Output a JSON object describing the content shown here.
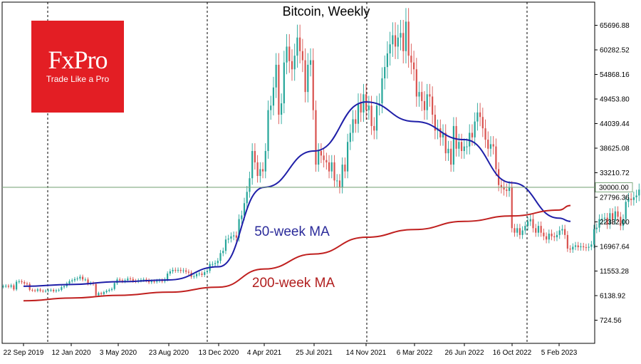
{
  "logo": {
    "name": "FxPro",
    "tagline": "Trade Like a Pro",
    "color": "#e31e24"
  },
  "colors": {
    "up": "#26a69a",
    "down": "#d9534f",
    "ma50": "#1f1fa8",
    "ma200": "#c0201f",
    "level": "#7fa87f"
  },
  "chart_data": {
    "type": "line",
    "title": "Bitcoin, Weekly",
    "y_ticks": [
      "65696.88",
      "60282.52",
      "54868.16",
      "49453.80",
      "44039.44",
      "38625.08",
      "33210.72",
      "27796.36",
      "22382.00",
      "16967.64",
      "11553.28",
      "6138.92",
      "724.56"
    ],
    "x_ticks": [
      "22 Sep 2019",
      "12 Jan 2020",
      "3 May 2020",
      "23 Aug 2020",
      "13 Dec 2020",
      "4 Apr 2021",
      "25 Jul 2021",
      "14 Nov 2021",
      "6 Mar 2022",
      "26 Jun 2022",
      "16 Oct 2022",
      "5 Feb 2023"
    ],
    "ylim": [
      -2000,
      70000
    ],
    "level": {
      "value": 30000,
      "label": "30000.00"
    },
    "annotations": [
      {
        "text": "50-week MA",
        "series": "ma50"
      },
      {
        "text": "200-week MA",
        "series": "ma200"
      }
    ],
    "series": [
      {
        "name": "Bitcoin",
        "type": "candlestick",
        "closes": [
          8200,
          8300,
          8100,
          8400,
          7500,
          9200,
          9300,
          9100,
          8800,
          8700,
          7400,
          7300,
          7200,
          7500,
          7200,
          7100,
          7200,
          7300,
          7400,
          7100,
          7300,
          7400,
          8000,
          8200,
          8800,
          9300,
          9500,
          9800,
          9900,
          10300,
          9700,
          9700,
          8800,
          8900,
          8700,
          6200,
          6700,
          6500,
          6900,
          7200,
          7400,
          7600,
          8900,
          9700,
          9500,
          9300,
          9500,
          9900,
          9800,
          9400,
          9300,
          9500,
          9600,
          9700,
          9500,
          9100,
          9300,
          9200,
          9400,
          9500,
          9300,
          9700,
          11000,
          11500,
          11800,
          11700,
          11800,
          11600,
          11700,
          11400,
          11200,
          10300,
          10400,
          10900,
          11000,
          10700,
          11300,
          11600,
          13100,
          13100,
          13300,
          13800,
          15500,
          16000,
          18500,
          18700,
          19200,
          19400,
          18900,
          23000,
          23800,
          26500,
          29000,
          32000,
          38000,
          35500,
          32500,
          34000,
          33500,
          38000,
          47000,
          48000,
          52000,
          57000,
          46000,
          48500,
          57500,
          61000,
          57800,
          56000,
          59000,
          63000,
          60000,
          58000,
          51000,
          57000,
          58000,
          47000,
          35000,
          38000,
          37000,
          36000,
          35500,
          33500,
          35500,
          31500,
          31500,
          30000,
          35000,
          33500,
          40000,
          42000,
          45000,
          44000,
          48500,
          46500,
          50500,
          47000,
          48000,
          43500,
          42500,
          48000,
          48500,
          54000,
          56500,
          59500,
          61500,
          63500,
          61000,
          63000,
          64000,
          60000,
          66500,
          59000,
          57500,
          56000,
          50000,
          51000,
          49000,
          47000,
          50500,
          50000,
          46000,
          42500,
          43000,
          41000,
          42000,
          37500,
          38500,
          35000,
          43500,
          38500,
          40000,
          38000,
          39000,
          39000,
          42000,
          41000,
          44500,
          46500,
          45500,
          43000,
          40500,
          38500,
          39500,
          39000,
          34000,
          30500,
          30000,
          29500,
          29200,
          30000,
          21000,
          20000,
          21000,
          19500,
          20500,
          21500,
          22500,
          23000,
          21000,
          20000,
          21500,
          20000,
          19200,
          18500,
          19800,
          19200,
          19000,
          19500,
          20500,
          20800,
          19500,
          16500,
          16300,
          16900,
          17200,
          16800,
          17000,
          16800,
          16700,
          16900,
          17400,
          20800,
          21100,
          23000,
          23100,
          23300,
          21800,
          24300,
          22800,
          24700,
          23500,
          21500,
          23000,
          26800,
          27500,
          27200,
          27800,
          28200,
          29500,
          30300
        ]
      },
      {
        "name": "50-week MA",
        "color": "#1f1fa8",
        "points": [
          [
            "22 Sep 2019",
            8200
          ],
          [
            "12 Jan 2020",
            8600
          ],
          [
            "3 May 2020",
            9200
          ],
          [
            "23 Aug 2020",
            9600
          ],
          [
            "13 Dec 2020",
            12500
          ],
          [
            "4 Apr 2021",
            30000
          ],
          [
            "25 Jul 2021",
            38000
          ],
          [
            "14 Nov 2021",
            48800
          ],
          [
            "6 Mar 2022",
            44500
          ],
          [
            "26 Jun 2022",
            40500
          ],
          [
            "16 Oct 2022",
            31000
          ],
          [
            "5 Feb 2023",
            23200
          ],
          [
            "19 Mar 2023",
            22500
          ]
        ]
      },
      {
        "name": "200-week MA",
        "color": "#c0201f",
        "points": [
          [
            "22 Sep 2019",
            5000
          ],
          [
            "12 Jan 2020",
            5600
          ],
          [
            "3 May 2020",
            6200
          ],
          [
            "23 Aug 2020",
            6900
          ],
          [
            "13 Dec 2020",
            8000
          ],
          [
            "4 Apr 2021",
            12000
          ],
          [
            "25 Jul 2021",
            15300
          ],
          [
            "14 Nov 2021",
            19000
          ],
          [
            "6 Mar 2022",
            20700
          ],
          [
            "26 Jun 2022",
            22500
          ],
          [
            "16 Oct 2022",
            23700
          ],
          [
            "5 Feb 2023",
            25000
          ],
          [
            "19 Mar 2023",
            26000
          ]
        ]
      }
    ]
  }
}
